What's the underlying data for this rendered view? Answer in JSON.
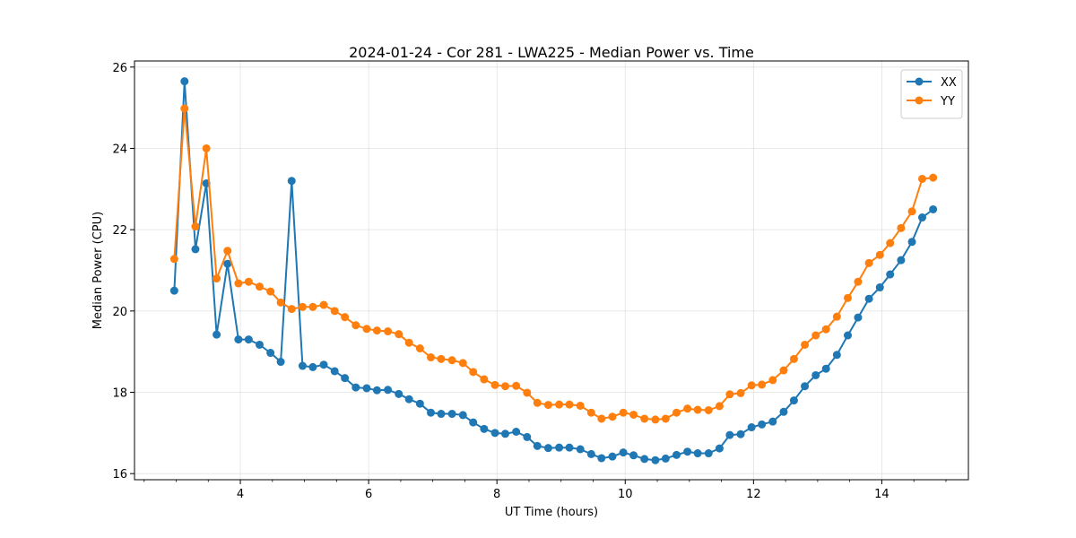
{
  "chart_data": {
    "type": "line",
    "title": "2024-01-24 - Cor 281 - LWA225 - Median Power vs. Time",
    "xlabel": "UT Time (hours)",
    "ylabel": "Median Power (CPU)",
    "xlim": [
      2.35,
      15.35
    ],
    "ylim": [
      15.85,
      26.15
    ],
    "xticks": [
      4,
      6,
      8,
      10,
      12,
      14
    ],
    "yticks": [
      16,
      18,
      20,
      22,
      24,
      26
    ],
    "grid": true,
    "legend_position": "top-right",
    "series": [
      {
        "name": "XX",
        "color": "#1f77b4",
        "marker": "circle",
        "x": [
          2.97,
          3.13,
          3.3,
          3.47,
          3.63,
          3.8,
          3.97,
          4.13,
          4.3,
          4.47,
          4.63,
          4.8,
          4.97,
          5.13,
          5.3,
          5.47,
          5.63,
          5.8,
          5.97,
          6.13,
          6.3,
          6.47,
          6.63,
          6.8,
          6.97,
          7.13,
          7.3,
          7.47,
          7.63,
          7.8,
          7.97,
          8.13,
          8.3,
          8.47,
          8.63,
          8.8,
          8.97,
          9.13,
          9.3,
          9.47,
          9.63,
          9.8,
          9.97,
          10.13,
          10.3,
          10.47,
          10.63,
          10.8,
          10.97,
          11.13,
          11.3,
          11.47,
          11.63,
          11.8,
          11.97,
          12.13,
          12.3,
          12.47,
          12.63,
          12.8,
          12.97,
          13.13,
          13.3,
          13.47,
          13.63,
          13.8,
          13.97,
          14.13,
          14.3,
          14.47,
          14.63,
          14.8
        ],
        "y": [
          20.5,
          25.65,
          21.52,
          23.14,
          19.42,
          21.16,
          19.3,
          19.3,
          19.17,
          18.97,
          18.75,
          23.2,
          18.65,
          18.62,
          18.68,
          18.52,
          18.35,
          18.12,
          18.1,
          18.05,
          18.06,
          17.96,
          17.83,
          17.72,
          17.5,
          17.47,
          17.47,
          17.44,
          17.26,
          17.1,
          17.0,
          16.98,
          17.03,
          16.9,
          16.68,
          16.63,
          16.64,
          16.64,
          16.6,
          16.48,
          16.38,
          16.42,
          16.52,
          16.45,
          16.36,
          16.33,
          16.37,
          16.46,
          16.54,
          16.5,
          16.5,
          16.62,
          16.95,
          16.97,
          17.14,
          17.21,
          17.28,
          17.52,
          17.8,
          18.15,
          18.42,
          18.58,
          18.92,
          19.4,
          19.84,
          20.3,
          20.58,
          20.9,
          21.25,
          21.7,
          22.3,
          22.5
        ]
      },
      {
        "name": "YY",
        "color": "#ff7f0e",
        "marker": "circle",
        "x": [
          2.97,
          3.13,
          3.3,
          3.47,
          3.63,
          3.8,
          3.97,
          4.13,
          4.3,
          4.47,
          4.63,
          4.8,
          4.97,
          5.13,
          5.3,
          5.47,
          5.63,
          5.8,
          5.97,
          6.13,
          6.3,
          6.47,
          6.63,
          6.8,
          6.97,
          7.13,
          7.3,
          7.47,
          7.63,
          7.8,
          7.97,
          8.13,
          8.3,
          8.47,
          8.63,
          8.8,
          8.97,
          9.13,
          9.3,
          9.47,
          9.63,
          9.8,
          9.97,
          10.13,
          10.3,
          10.47,
          10.63,
          10.8,
          10.97,
          11.13,
          11.3,
          11.47,
          11.63,
          11.8,
          11.97,
          12.13,
          12.3,
          12.47,
          12.63,
          12.8,
          12.97,
          13.13,
          13.3,
          13.47,
          13.63,
          13.8,
          13.97,
          14.13,
          14.3,
          14.47,
          14.63,
          14.8
        ],
        "y": [
          21.28,
          24.98,
          22.08,
          24.0,
          20.8,
          21.48,
          20.68,
          20.72,
          20.6,
          20.48,
          20.21,
          20.05,
          20.1,
          20.1,
          20.15,
          20.0,
          19.85,
          19.65,
          19.56,
          19.52,
          19.5,
          19.43,
          19.22,
          19.08,
          18.86,
          18.82,
          18.79,
          18.72,
          18.5,
          18.32,
          18.18,
          18.15,
          18.16,
          17.99,
          17.74,
          17.69,
          17.7,
          17.7,
          17.67,
          17.5,
          17.35,
          17.4,
          17.5,
          17.45,
          17.35,
          17.33,
          17.35,
          17.5,
          17.6,
          17.57,
          17.56,
          17.66,
          17.95,
          17.98,
          18.17,
          18.19,
          18.3,
          18.54,
          18.82,
          19.17,
          19.4,
          19.55,
          19.86,
          20.32,
          20.72,
          21.18,
          21.38,
          21.67,
          22.04,
          22.45,
          23.25,
          23.28
        ]
      }
    ]
  }
}
